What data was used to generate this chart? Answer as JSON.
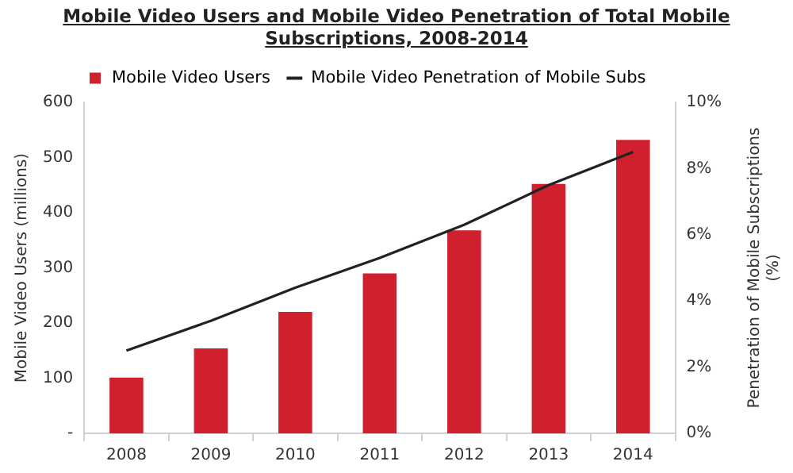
{
  "chart_data": {
    "type": "bar",
    "title": "Mobile Video Users and Mobile Video Penetration of Total Mobile Subscriptions, 2008-2014",
    "ylabel": "Mobile Video Users (millions)",
    "y2label": "Penetration of Mobile Subscriptions (%)",
    "categories": [
      "2008",
      "2009",
      "2010",
      "2011",
      "2012",
      "2013",
      "2014"
    ],
    "series": [
      {
        "name": "Mobile Video Users",
        "color": "#d0202e",
        "values": [
          101,
          154,
          220,
          290,
          368,
          452,
          532
        ]
      },
      {
        "name": "Mobile Video Penetration of Mobile Subs",
        "type": "line",
        "axis": "y2",
        "color": "#222222",
        "values": [
          2.5,
          3.4,
          4.4,
          5.3,
          6.3,
          7.5,
          8.5
        ]
      }
    ],
    "ylim": [
      0,
      600
    ],
    "yticks": [
      {
        "value": 0,
        "label": "-"
      },
      100,
      200,
      300,
      400,
      500,
      600
    ],
    "y2lim": [
      0,
      10
    ],
    "y2ticks": [
      {
        "value": 0,
        "label": "0%"
      },
      {
        "value": 2,
        "label": "2%"
      },
      {
        "value": 4,
        "label": "4%"
      },
      {
        "value": 6,
        "label": "6%"
      },
      {
        "value": 8,
        "label": "8%"
      },
      {
        "value": 10,
        "label": "10%"
      }
    ],
    "grid": false,
    "legend": "top",
    "marker": "none"
  }
}
